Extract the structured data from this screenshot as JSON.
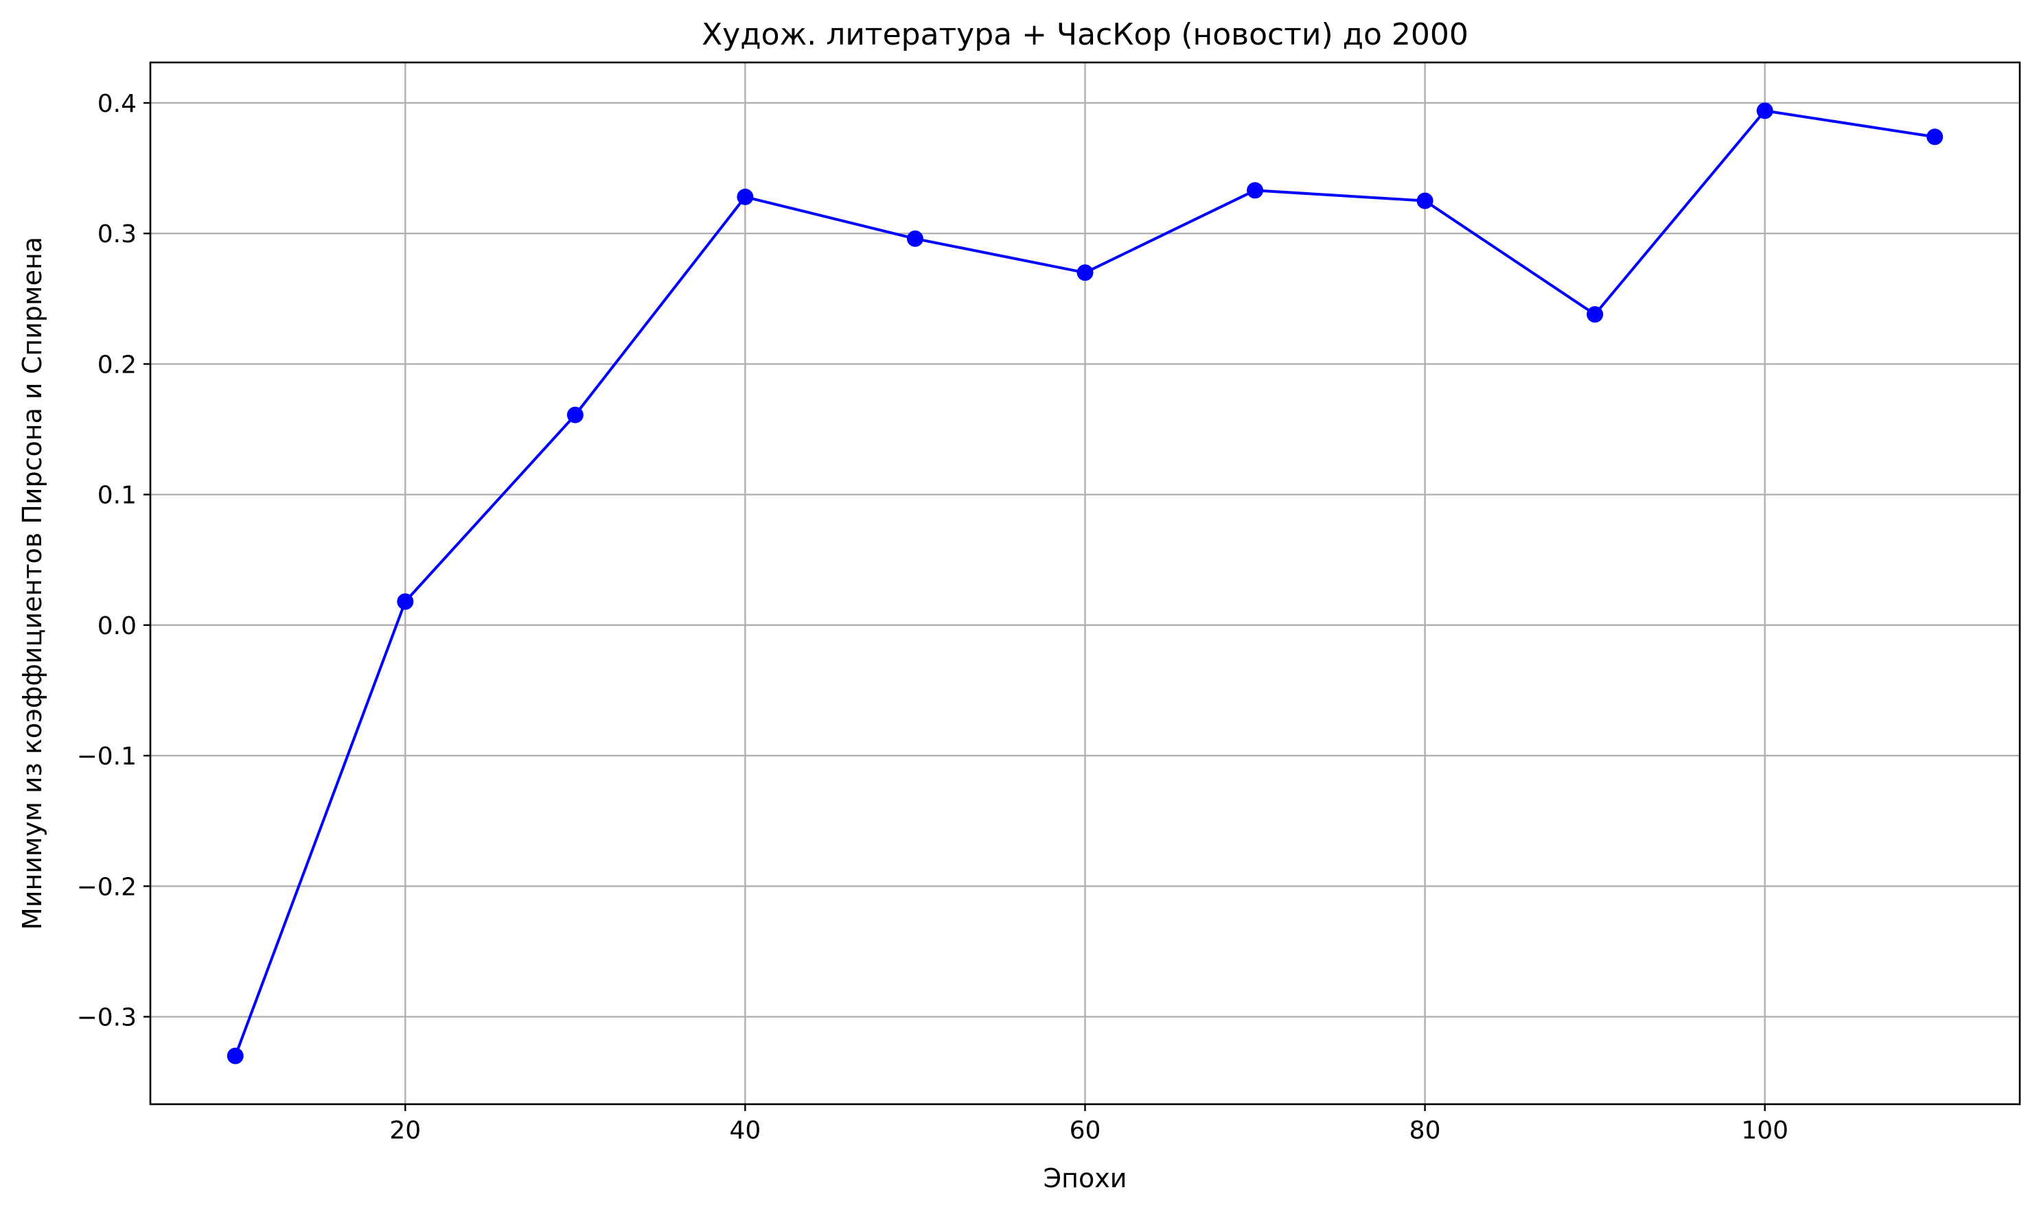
{
  "chart_data": {
    "type": "line",
    "title": "Худож. литература + ЧасКор (новости) до 2000",
    "xlabel": "Эпохи",
    "ylabel": "Минимум из коэффициентов Пирсона и Спирмена",
    "x": [
      10,
      20,
      30,
      40,
      50,
      60,
      70,
      80,
      90,
      100,
      110
    ],
    "series": [
      {
        "values": [
          -0.33,
          0.018,
          0.161,
          0.328,
          0.296,
          0.27,
          0.333,
          0.325,
          0.238,
          0.394,
          0.374
        ],
        "color": "#0000ff",
        "marker": "circle"
      }
    ],
    "xlim": [
      5,
      115
    ],
    "ylim": [
      -0.367,
      0.431
    ],
    "xticks": [
      20,
      40,
      60,
      80,
      100
    ],
    "xtick_labels": [
      "20",
      "40",
      "60",
      "80",
      "100"
    ],
    "yticks": [
      -0.3,
      -0.2,
      -0.1,
      0.0,
      0.1,
      0.2,
      0.3,
      0.4
    ],
    "ytick_labels": [
      "−0.3",
      "−0.2",
      "−0.1",
      "0.0",
      "0.1",
      "0.2",
      "0.3",
      "0.4"
    ],
    "grid": true,
    "legend": false
  }
}
